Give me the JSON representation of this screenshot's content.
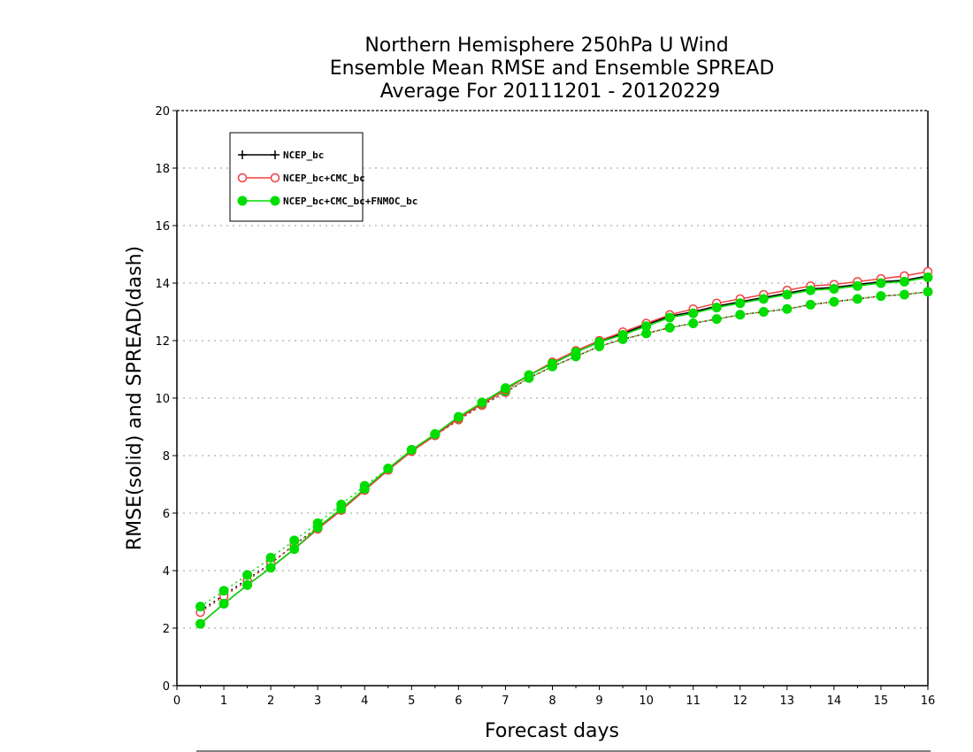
{
  "chart_data": {
    "type": "line",
    "title": [
      "Northern Hemisphere 250hPa U Wind",
      "Ensemble Mean RMSE and Ensemble SPREAD",
      "Average For 20111201 - 20120229"
    ],
    "xlabel": "Forecast days",
    "ylabel": "RMSE(solid) and SPREAD(dash)",
    "xlim": [
      0,
      16
    ],
    "ylim": [
      0,
      20
    ],
    "xticks": [
      0,
      1,
      2,
      3,
      4,
      5,
      6,
      7,
      8,
      9,
      10,
      11,
      12,
      13,
      14,
      15,
      16
    ],
    "yticks": [
      0,
      2,
      4,
      6,
      8,
      10,
      12,
      14,
      16,
      18,
      20
    ],
    "grid": "horizontal-dotted",
    "legend_position": "top-left",
    "legend": [
      {
        "label": "NCEP_bc",
        "color": "#000000",
        "marker": "plus"
      },
      {
        "label": "NCEP_bc+CMC_bc",
        "color": "#f04040",
        "marker": "open-circle"
      },
      {
        "label": "NCEP_bc+CMC_bc+FNMOC_bc",
        "color": "#00dd00",
        "marker": "filled-circle"
      }
    ],
    "x": [
      0.5,
      1,
      1.5,
      2,
      2.5,
      3,
      3.5,
      4,
      4.5,
      5,
      5.5,
      6,
      6.5,
      7,
      7.5,
      8,
      8.5,
      9,
      9.5,
      10,
      10.5,
      11,
      11.5,
      12,
      12.5,
      13,
      13.5,
      14,
      14.5,
      15,
      15.5,
      16
    ],
    "series": [
      {
        "name": "NCEP_bc RMSE",
        "style": "solid",
        "color": "#000000",
        "marker": "none",
        "values": [
          2.15,
          2.85,
          3.5,
          4.1,
          4.75,
          5.45,
          6.1,
          6.8,
          7.5,
          8.15,
          8.7,
          9.3,
          9.8,
          10.3,
          10.8,
          11.2,
          11.6,
          11.95,
          12.25,
          12.55,
          12.85,
          13.0,
          13.2,
          13.35,
          13.5,
          13.65,
          13.8,
          13.85,
          13.95,
          14.05,
          14.1,
          14.25
        ]
      },
      {
        "name": "NCEP_bc+CMC_bc RMSE",
        "style": "solid",
        "color": "#f04040",
        "marker": "open-circle",
        "values": [
          2.15,
          2.85,
          3.5,
          4.1,
          4.75,
          5.45,
          6.1,
          6.8,
          7.5,
          8.15,
          8.7,
          9.3,
          9.8,
          10.3,
          10.8,
          11.25,
          11.65,
          12.0,
          12.3,
          12.6,
          12.9,
          13.1,
          13.3,
          13.45,
          13.6,
          13.75,
          13.9,
          13.95,
          14.05,
          14.15,
          14.25,
          14.4
        ]
      },
      {
        "name": "NCEP_bc+CMC_bc+FNMOC_bc RMSE",
        "style": "solid",
        "color": "#00dd00",
        "marker": "filled-circle",
        "values": [
          2.15,
          2.85,
          3.5,
          4.1,
          4.75,
          5.5,
          6.15,
          6.85,
          7.55,
          8.2,
          8.75,
          9.35,
          9.85,
          10.35,
          10.8,
          11.2,
          11.6,
          11.95,
          12.2,
          12.5,
          12.8,
          12.95,
          13.15,
          13.3,
          13.45,
          13.6,
          13.75,
          13.8,
          13.9,
          14.0,
          14.05,
          14.2
        ]
      },
      {
        "name": "NCEP_bc SPREAD",
        "style": "dash",
        "color": "#000000",
        "marker": "none",
        "values": [
          2.6,
          3.15,
          3.7,
          4.25,
          4.9,
          5.5,
          6.15,
          6.8,
          7.5,
          8.15,
          8.7,
          9.25,
          9.75,
          10.2,
          10.7,
          11.1,
          11.45,
          11.8,
          12.05,
          12.25,
          12.45,
          12.6,
          12.75,
          12.9,
          13.0,
          13.1,
          13.25,
          13.35,
          13.45,
          13.55,
          13.6,
          13.7
        ]
      },
      {
        "name": "NCEP_bc+CMC_bc SPREAD",
        "style": "dash",
        "color": "#f04040",
        "marker": "open-circle",
        "values": [
          2.55,
          3.1,
          3.65,
          4.25,
          4.9,
          5.5,
          6.15,
          6.8,
          7.5,
          8.15,
          8.7,
          9.25,
          9.75,
          10.2,
          10.7,
          11.1,
          11.45,
          11.8,
          12.05,
          12.25,
          12.45,
          12.6,
          12.75,
          12.9,
          13.0,
          13.1,
          13.25,
          13.35,
          13.45,
          13.55,
          13.6,
          13.7
        ]
      },
      {
        "name": "NCEP_bc+CMC_bc+FNMOC_bc SPREAD",
        "style": "dash",
        "color": "#00dd00",
        "marker": "filled-circle",
        "values": [
          2.75,
          3.3,
          3.85,
          4.45,
          5.05,
          5.65,
          6.3,
          6.95,
          7.55,
          8.2,
          8.75,
          9.3,
          9.8,
          10.25,
          10.7,
          11.1,
          11.45,
          11.8,
          12.05,
          12.25,
          12.45,
          12.6,
          12.75,
          12.9,
          13.0,
          13.1,
          13.25,
          13.35,
          13.45,
          13.55,
          13.6,
          13.7
        ]
      }
    ]
  }
}
